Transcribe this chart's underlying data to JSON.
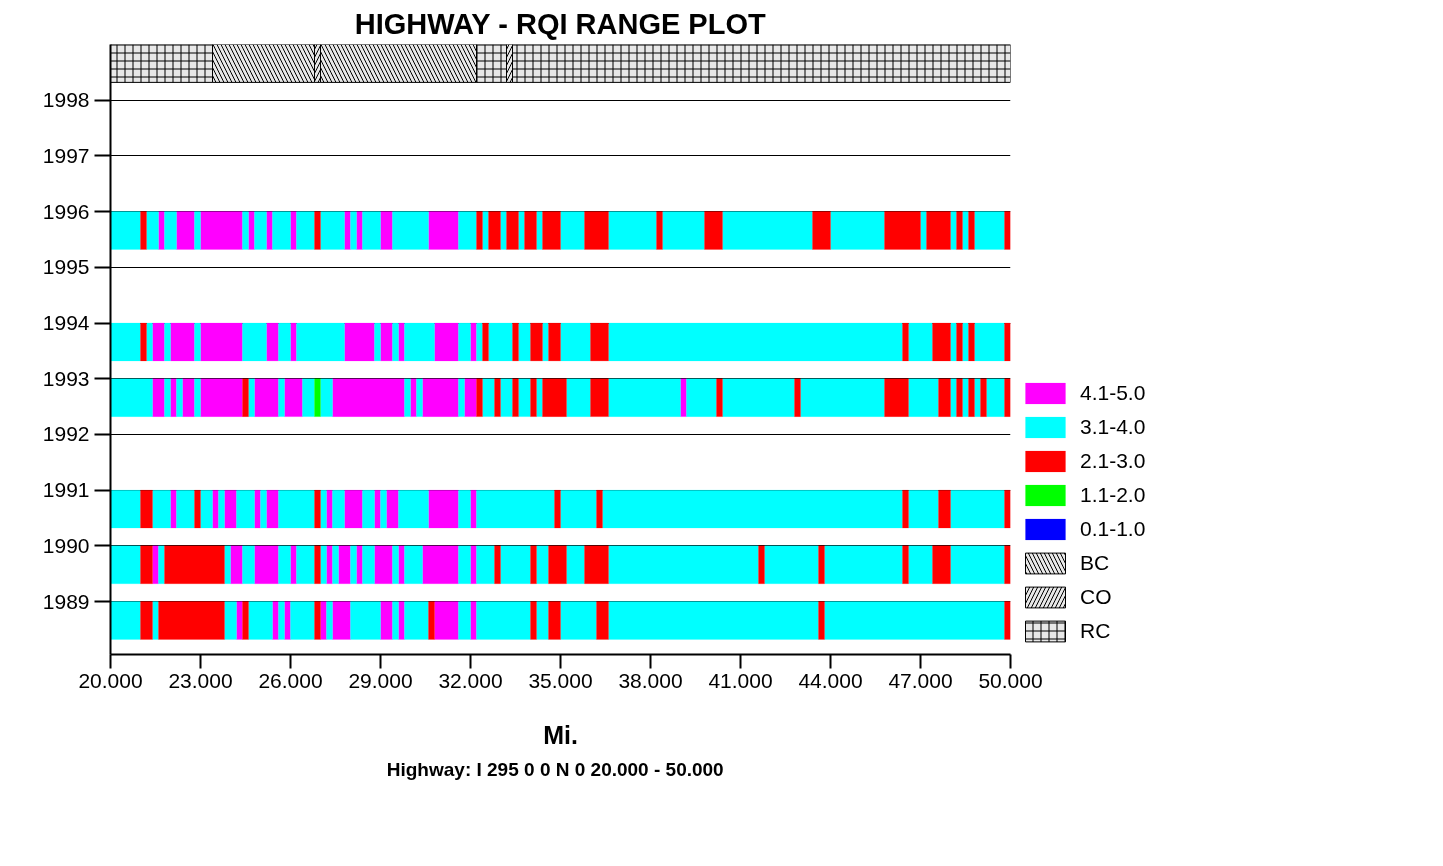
{
  "chart_data": {
    "type": "bar",
    "orientation": "horizontal",
    "title": "HIGHWAY - RQI RANGE PLOT",
    "xlabel": "Mi.",
    "annotations": [
      "Highway: I 295  0 0 N 0  20.000 - 50.000"
    ],
    "categories": [
      null,
      "1998",
      "1997",
      "1996",
      "1995",
      "1994",
      "1993",
      "1992",
      "1991",
      "1990",
      "1989"
    ],
    "xlim": [
      20,
      50
    ],
    "xticks": [
      {
        "value": 20,
        "label": "20.000"
      },
      {
        "value": 23,
        "label": "23.000"
      },
      {
        "value": 26,
        "label": "26.000"
      },
      {
        "value": 29,
        "label": "29.000"
      },
      {
        "value": 32,
        "label": "32.000"
      },
      {
        "value": 35,
        "label": "35.000"
      },
      {
        "value": 38,
        "label": "38.000"
      },
      {
        "value": 41,
        "label": "41.000"
      },
      {
        "value": 44,
        "label": "44.000"
      },
      {
        "value": 47,
        "label": "47.000"
      },
      {
        "value": 50,
        "label": "50.000"
      }
    ],
    "grid": "y",
    "legend": "right",
    "series": [
      {
        "name": "4.1-5.0",
        "color": "#ff00ff",
        "base": [
          null,
          null,
          null,
          21.6,
          null,
          21.4,
          21.4,
          null,
          22.0,
          21.4,
          24.2
        ],
        "values": [
          null,
          null,
          null,
          0.2,
          null,
          0.4,
          0.4,
          null,
          0.2,
          0.2,
          0.2
        ]
      },
      {
        "color": "#ff00ff",
        "base": [
          null,
          null,
          null,
          22.2,
          null,
          22.0,
          22.0,
          null,
          23.4,
          24.0,
          25.4
        ],
        "values": [
          null,
          null,
          null,
          0.6,
          null,
          0.8,
          0.2,
          null,
          0.2,
          0.4,
          0.2
        ]
      },
      {
        "color": "#ff00ff",
        "base": [
          null,
          null,
          null,
          23.0,
          null,
          23.0,
          22.4,
          null,
          23.8,
          24.8,
          25.8
        ],
        "values": [
          null,
          null,
          null,
          1.4,
          null,
          1.4,
          0.4,
          null,
          0.4,
          0.8,
          0.2
        ]
      },
      {
        "color": "#ff00ff",
        "base": [
          null,
          null,
          null,
          24.6,
          null,
          25.2,
          23.0,
          null,
          24.8,
          26.0,
          27.0
        ],
        "values": [
          null,
          null,
          null,
          0.2,
          null,
          0.4,
          1.4,
          null,
          0.2,
          0.2,
          0.2
        ]
      },
      {
        "color": "#ff00ff",
        "base": [
          null,
          null,
          null,
          25.2,
          null,
          26.0,
          24.8,
          null,
          25.2,
          27.2,
          27.4
        ],
        "values": [
          null,
          null,
          null,
          0.2,
          null,
          0.2,
          0.8,
          null,
          0.4,
          0.2,
          0.6
        ]
      },
      {
        "color": "#ff00ff",
        "base": [
          null,
          null,
          null,
          26.0,
          null,
          27.8,
          25.8,
          null,
          27.2,
          27.6,
          29.0
        ],
        "values": [
          null,
          null,
          null,
          0.2,
          null,
          1.0,
          0.6,
          null,
          0.2,
          0.4,
          0.4
        ]
      },
      {
        "color": "#ff00ff",
        "base": [
          null,
          null,
          null,
          27.8,
          null,
          29.0,
          27.4,
          null,
          27.8,
          28.2,
          29.6
        ],
        "values": [
          null,
          null,
          null,
          0.2,
          null,
          0.4,
          2.4,
          null,
          0.6,
          0.2,
          0.2
        ]
      },
      {
        "color": "#ff00ff",
        "base": [
          null,
          null,
          null,
          28.2,
          null,
          29.6,
          30.0,
          null,
          28.8,
          28.8,
          30.8
        ],
        "values": [
          null,
          null,
          null,
          0.2,
          null,
          0.2,
          0.2,
          null,
          0.2,
          0.6,
          0.8
        ]
      },
      {
        "color": "#ff00ff",
        "base": [
          null,
          null,
          null,
          29.0,
          null,
          30.8,
          30.4,
          null,
          29.2,
          29.6,
          32.0
        ],
        "values": [
          null,
          null,
          null,
          0.4,
          null,
          0.8,
          1.2,
          null,
          0.4,
          0.2,
          0.2
        ]
      },
      {
        "color": "#ff00ff",
        "base": [
          null,
          null,
          null,
          30.6,
          null,
          32.0,
          31.8,
          null,
          30.6,
          30.4,
          null
        ],
        "values": [
          null,
          null,
          null,
          1.0,
          null,
          0.2,
          0.4,
          null,
          1.0,
          1.2,
          null
        ]
      },
      {
        "color": "#ff00ff",
        "base": [
          null,
          null,
          null,
          null,
          null,
          null,
          39.0,
          null,
          32.0,
          32.0,
          null
        ],
        "values": [
          null,
          null,
          null,
          null,
          null,
          null,
          0.2,
          null,
          0.2,
          0.2,
          null
        ]
      },
      {
        "name": "3.1-4.0",
        "color": "#00ffff",
        "base": [
          null,
          null,
          null,
          20.0,
          null,
          20.0,
          20.0,
          null,
          20.0,
          20.0,
          20.0
        ],
        "values": [
          null,
          null,
          null,
          1.0,
          null,
          1.0,
          1.4,
          null,
          1.0,
          1.0,
          1.0
        ]
      },
      {
        "color": "#00ffff",
        "base": [
          null,
          null,
          null,
          21.2,
          null,
          21.2,
          21.8,
          null,
          21.4,
          21.6,
          21.4
        ],
        "values": [
          null,
          null,
          null,
          0.4,
          null,
          0.2,
          0.2,
          null,
          0.6,
          0.2,
          0.2
        ]
      },
      {
        "color": "#00ffff",
        "base": [
          null,
          null,
          null,
          21.8,
          null,
          21.8,
          22.2,
          null,
          22.2,
          23.8,
          23.8
        ],
        "values": [
          null,
          null,
          null,
          0.4,
          null,
          0.2,
          0.2,
          null,
          0.6,
          0.2,
          0.4
        ]
      },
      {
        "color": "#00ffff",
        "base": [
          null,
          null,
          null,
          22.8,
          null,
          22.8,
          22.8,
          null,
          23.0,
          24.4,
          24.6
        ],
        "values": [
          null,
          null,
          null,
          0.2,
          null,
          0.2,
          0.2,
          null,
          0.4,
          0.4,
          0.8
        ]
      },
      {
        "color": "#00ffff",
        "base": [
          null,
          null,
          null,
          24.4,
          null,
          24.4,
          24.6,
          null,
          23.6,
          25.6,
          25.6
        ],
        "values": [
          null,
          null,
          null,
          0.2,
          null,
          0.8,
          0.2,
          null,
          0.2,
          0.4,
          0.2
        ]
      },
      {
        "color": "#00ffff",
        "base": [
          null,
          null,
          null,
          24.8,
          null,
          25.6,
          25.6,
          null,
          24.2,
          26.2,
          26.0
        ],
        "values": [
          null,
          null,
          null,
          0.4,
          null,
          0.4,
          0.2,
          null,
          0.6,
          0.6,
          0.8
        ]
      },
      {
        "color": "#00ffff",
        "base": [
          null,
          null,
          null,
          25.4,
          null,
          26.2,
          26.4,
          null,
          25.0,
          27.0,
          27.2
        ],
        "values": [
          null,
          null,
          null,
          0.6,
          null,
          1.6,
          0.4,
          null,
          0.2,
          0.2,
          0.2
        ]
      },
      {
        "color": "#00ffff",
        "base": [
          null,
          null,
          null,
          26.2,
          null,
          28.8,
          27.0,
          null,
          25.6,
          27.4,
          28.0
        ],
        "values": [
          null,
          null,
          null,
          0.6,
          null,
          0.2,
          0.4,
          null,
          1.2,
          0.2,
          1.0
        ]
      },
      {
        "color": "#00ffff",
        "base": [
          null,
          null,
          null,
          27.0,
          null,
          29.4,
          29.8,
          null,
          27.0,
          28.0,
          29.4
        ],
        "values": [
          null,
          null,
          null,
          0.8,
          null,
          0.2,
          0.2,
          null,
          0.2,
          0.2,
          0.2
        ]
      },
      {
        "color": "#00ffff",
        "base": [
          null,
          null,
          null,
          28.0,
          null,
          29.8,
          30.2,
          null,
          27.4,
          28.4,
          29.8
        ],
        "values": [
          null,
          null,
          null,
          0.2,
          null,
          1.0,
          0.2,
          null,
          0.4,
          0.4,
          0.8
        ]
      },
      {
        "color": "#00ffff",
        "base": [
          null,
          null,
          null,
          28.4,
          null,
          31.6,
          31.6,
          null,
          28.4,
          29.4,
          31.6
        ],
        "values": [
          null,
          null,
          null,
          0.6,
          null,
          0.4,
          0.2,
          null,
          0.4,
          0.2,
          0.4
        ]
      },
      {
        "color": "#00ffff",
        "base": [
          null,
          null,
          null,
          29.4,
          null,
          32.2,
          32.4,
          null,
          29.0,
          29.8,
          32.2
        ],
        "values": [
          null,
          null,
          null,
          1.2,
          null,
          0.2,
          0.4,
          null,
          0.2,
          0.6,
          1.8
        ]
      },
      {
        "color": "#00ffff",
        "base": [
          null,
          null,
          null,
          31.6,
          null,
          32.6,
          33.0,
          null,
          29.6,
          31.6,
          34.2
        ],
        "values": [
          null,
          null,
          null,
          0.6,
          null,
          0.8,
          0.4,
          null,
          1.0,
          0.4,
          0.4
        ]
      },
      {
        "color": "#00ffff",
        "base": [
          null,
          null,
          null,
          32.4,
          null,
          33.6,
          33.6,
          null,
          31.6,
          32.2,
          35.0
        ],
        "values": [
          null,
          null,
          null,
          0.2,
          null,
          0.4,
          0.4,
          null,
          0.4,
          0.6,
          1.2
        ]
      },
      {
        "color": "#00ffff",
        "base": [
          null,
          null,
          null,
          33.0,
          null,
          34.4,
          34.2,
          null,
          32.2,
          33.0,
          36.6
        ],
        "values": [
          null,
          null,
          null,
          0.2,
          null,
          0.2,
          0.2,
          null,
          2.6,
          1.0,
          7.0
        ]
      },
      {
        "color": "#00ffff",
        "base": [
          null,
          null,
          null,
          33.6,
          null,
          35.0,
          35.2,
          null,
          35.0,
          34.2,
          43.8
        ],
        "values": [
          null,
          null,
          null,
          0.2,
          null,
          1.0,
          0.8,
          null,
          1.2,
          0.4,
          6.0
        ]
      },
      {
        "color": "#00ffff",
        "base": [
          null,
          null,
          null,
          34.2,
          null,
          36.6,
          36.6,
          null,
          36.4,
          35.2,
          null
        ],
        "values": [
          null,
          null,
          null,
          0.2,
          null,
          9.8,
          2.4,
          null,
          10.0,
          0.6,
          null
        ]
      },
      {
        "color": "#00ffff",
        "base": [
          null,
          null,
          null,
          35.0,
          null,
          46.6,
          39.2,
          null,
          46.6,
          36.6,
          null
        ],
        "values": [
          null,
          null,
          null,
          0.8,
          null,
          0.8,
          1.0,
          null,
          1.0,
          5.0,
          null
        ]
      },
      {
        "color": "#00ffff",
        "base": [
          null,
          null,
          null,
          36.6,
          null,
          48.0,
          40.4,
          null,
          48.0,
          41.8,
          null
        ],
        "values": [
          null,
          null,
          null,
          1.6,
          null,
          0.2,
          2.4,
          null,
          1.8,
          1.8,
          null
        ]
      },
      {
        "color": "#00ffff",
        "base": [
          null,
          null,
          null,
          38.4,
          null,
          48.4,
          43.0,
          null,
          null,
          43.8,
          null
        ],
        "values": [
          null,
          null,
          null,
          1.4,
          null,
          0.2,
          2.8,
          null,
          null,
          2.6,
          null
        ]
      },
      {
        "color": "#00ffff",
        "base": [
          null,
          null,
          null,
          40.4,
          null,
          48.8,
          46.6,
          null,
          null,
          46.6,
          null
        ],
        "values": [
          null,
          null,
          null,
          3.0,
          null,
          1.0,
          1.0,
          null,
          null,
          0.8,
          null
        ]
      },
      {
        "color": "#00ffff",
        "base": [
          null,
          null,
          null,
          44.0,
          null,
          null,
          48.0,
          null,
          null,
          48.0,
          null
        ],
        "values": [
          null,
          null,
          null,
          1.8,
          null,
          null,
          0.2,
          null,
          null,
          1.8,
          null
        ]
      },
      {
        "color": "#00ffff",
        "base": [
          null,
          null,
          null,
          47.0,
          null,
          null,
          48.4,
          null,
          null,
          null,
          null
        ],
        "values": [
          null,
          null,
          null,
          0.2,
          null,
          null,
          0.2,
          null,
          null,
          null,
          null
        ]
      },
      {
        "color": "#00ffff",
        "base": [
          null,
          null,
          null,
          48.0,
          null,
          null,
          48.8,
          null,
          null,
          null,
          null
        ],
        "values": [
          null,
          null,
          null,
          0.2,
          null,
          null,
          0.2,
          null,
          null,
          null,
          null
        ]
      },
      {
        "color": "#00ffff",
        "base": [
          null,
          null,
          null,
          48.4,
          null,
          null,
          49.2,
          null,
          null,
          null,
          null
        ],
        "values": [
          null,
          null,
          null,
          0.2,
          null,
          null,
          0.6,
          null,
          null,
          null,
          null
        ]
      },
      {
        "color": "#00ffff",
        "base": [
          null,
          null,
          null,
          48.8,
          null,
          null,
          null,
          null,
          null,
          null,
          null
        ],
        "values": [
          null,
          null,
          null,
          1.0,
          null,
          null,
          null,
          null,
          null,
          null,
          null
        ]
      },
      {
        "name": "2.1-3.0",
        "color": "#ff0000",
        "base": [
          null,
          null,
          null,
          21.0,
          null,
          21.0,
          24.4,
          null,
          21.0,
          21.0,
          21.0
        ],
        "values": [
          null,
          null,
          null,
          0.2,
          null,
          0.2,
          0.2,
          null,
          0.4,
          0.4,
          0.4
        ]
      },
      {
        "color": "#ff0000",
        "base": [
          null,
          null,
          null,
          26.8,
          null,
          32.4,
          32.2,
          null,
          22.8,
          21.8,
          21.6
        ],
        "values": [
          null,
          null,
          null,
          0.2,
          null,
          0.2,
          0.2,
          null,
          0.2,
          2.0,
          2.2
        ]
      },
      {
        "color": "#ff0000",
        "base": [
          null,
          null,
          null,
          32.2,
          null,
          33.4,
          32.8,
          null,
          26.8,
          26.8,
          24.4
        ],
        "values": [
          null,
          null,
          null,
          0.2,
          null,
          0.2,
          0.2,
          null,
          0.2,
          0.2,
          0.2
        ]
      },
      {
        "color": "#ff0000",
        "base": [
          null,
          null,
          null,
          32.6,
          null,
          34.0,
          33.4,
          null,
          34.8,
          32.8,
          26.8
        ],
        "values": [
          null,
          null,
          null,
          0.4,
          null,
          0.4,
          0.2,
          null,
          0.2,
          0.2,
          0.2
        ]
      },
      {
        "color": "#ff0000",
        "base": [
          null,
          null,
          null,
          33.2,
          null,
          34.6,
          34.0,
          null,
          36.2,
          34.0,
          30.6
        ],
        "values": [
          null,
          null,
          null,
          0.4,
          null,
          0.4,
          0.2,
          null,
          0.2,
          0.2,
          0.2
        ]
      },
      {
        "color": "#ff0000",
        "base": [
          null,
          null,
          null,
          33.8,
          null,
          36.0,
          34.4,
          null,
          46.4,
          34.6,
          34.0
        ],
        "values": [
          null,
          null,
          null,
          0.4,
          null,
          0.6,
          0.8,
          null,
          0.2,
          0.6,
          0.2
        ]
      },
      {
        "color": "#ff0000",
        "base": [
          null,
          null,
          null,
          34.4,
          null,
          46.4,
          36.0,
          null,
          47.6,
          35.8,
          34.6
        ],
        "values": [
          null,
          null,
          null,
          0.6,
          null,
          0.2,
          0.6,
          null,
          0.4,
          0.8,
          0.4
        ]
      },
      {
        "color": "#ff0000",
        "base": [
          null,
          null,
          null,
          35.8,
          null,
          47.4,
          40.2,
          null,
          49.8,
          41.6,
          36.2
        ],
        "values": [
          null,
          null,
          null,
          0.8,
          null,
          0.6,
          0.2,
          null,
          0.2,
          0.2,
          0.4
        ]
      },
      {
        "color": "#ff0000",
        "base": [
          null,
          null,
          null,
          38.2,
          null,
          48.2,
          42.8,
          null,
          null,
          43.6,
          43.6
        ],
        "values": [
          null,
          null,
          null,
          0.2,
          null,
          0.2,
          0.2,
          null,
          null,
          0.2,
          0.2
        ]
      },
      {
        "color": "#ff0000",
        "base": [
          null,
          null,
          null,
          39.8,
          null,
          48.6,
          45.8,
          null,
          null,
          46.4,
          49.8
        ],
        "values": [
          null,
          null,
          null,
          0.6,
          null,
          0.2,
          0.8,
          null,
          null,
          0.2,
          0.2
        ]
      },
      {
        "color": "#ff0000",
        "base": [
          null,
          null,
          null,
          43.4,
          null,
          49.8,
          47.6,
          null,
          null,
          47.4,
          null
        ],
        "values": [
          null,
          null,
          null,
          0.6,
          null,
          0.2,
          0.4,
          null,
          null,
          0.6,
          null
        ]
      },
      {
        "color": "#ff0000",
        "base": [
          null,
          null,
          null,
          45.8,
          null,
          null,
          48.2,
          null,
          null,
          49.8,
          null
        ],
        "values": [
          null,
          null,
          null,
          1.2,
          null,
          null,
          0.2,
          null,
          null,
          0.2,
          null
        ]
      },
      {
        "color": "#ff0000",
        "base": [
          null,
          null,
          null,
          47.2,
          null,
          null,
          48.6,
          null,
          null,
          null,
          null
        ],
        "values": [
          null,
          null,
          null,
          0.8,
          null,
          null,
          0.2,
          null,
          null,
          null,
          null
        ]
      },
      {
        "color": "#ff0000",
        "base": [
          null,
          null,
          null,
          48.2,
          null,
          null,
          49.0,
          null,
          null,
          null,
          null
        ],
        "values": [
          null,
          null,
          null,
          0.2,
          null,
          null,
          0.2,
          null,
          null,
          null,
          null
        ]
      },
      {
        "color": "#ff0000",
        "base": [
          null,
          null,
          null,
          48.6,
          null,
          null,
          49.8,
          null,
          null,
          null,
          null
        ],
        "values": [
          null,
          null,
          null,
          0.2,
          null,
          null,
          0.2,
          null,
          null,
          null,
          null
        ]
      },
      {
        "color": "#ff0000",
        "base": [
          null,
          null,
          null,
          49.8,
          null,
          null,
          null,
          null,
          null,
          null,
          null
        ],
        "values": [
          null,
          null,
          null,
          0.2,
          null,
          null,
          null,
          null,
          null,
          null,
          null
        ]
      },
      {
        "name": "1.1-2.0",
        "color": "#00ff00",
        "base": [
          null,
          null,
          null,
          null,
          null,
          null,
          26.8,
          null,
          null,
          null,
          null
        ],
        "values": [
          null,
          null,
          null,
          null,
          null,
          null,
          0.2,
          null,
          null,
          null,
          null
        ]
      },
      {
        "name": "0.1-1.0",
        "color": "#0000ff",
        "base": [
          null,
          null,
          null,
          null,
          null,
          null,
          null,
          null,
          null,
          null,
          null
        ],
        "values": [
          null,
          null,
          null,
          null,
          null,
          null,
          null,
          null,
          null,
          null,
          null
        ]
      },
      {
        "name": "BC",
        "color": "#e8e8e8",
        "base": [
          23.4,
          null,
          null,
          null,
          null,
          null,
          null,
          null,
          null,
          null,
          null
        ],
        "values": [
          3.4,
          null,
          null,
          null,
          null,
          null,
          null,
          null,
          null,
          null,
          null
        ]
      },
      {
        "color": "#e8e8e8",
        "base": [
          27.0,
          null,
          null,
          null,
          null,
          null,
          null,
          null,
          null,
          null,
          null
        ],
        "values": [
          5.2,
          null,
          null,
          null,
          null,
          null,
          null,
          null,
          null,
          null,
          null
        ]
      },
      {
        "name": "CO",
        "color": "#e8e8e8",
        "base": [
          26.8,
          null,
          null,
          null,
          null,
          null,
          null,
          null,
          null,
          null,
          null
        ],
        "values": [
          0.2,
          null,
          null,
          null,
          null,
          null,
          null,
          null,
          null,
          null,
          null
        ]
      },
      {
        "color": "#e8e8e8",
        "base": [
          33.2,
          null,
          null,
          null,
          null,
          null,
          null,
          null,
          null,
          null,
          null
        ],
        "values": [
          0.2,
          null,
          null,
          null,
          null,
          null,
          null,
          null,
          null,
          null,
          null
        ]
      },
      {
        "name": "RC",
        "color": "#e8e8e8",
        "base": [
          20.0,
          null,
          null,
          null,
          null,
          null,
          null,
          null,
          null,
          null,
          null
        ],
        "values": [
          3.4,
          null,
          null,
          null,
          null,
          null,
          null,
          null,
          null,
          null,
          null
        ]
      },
      {
        "color": "#e8e8e8",
        "base": [
          32.2,
          null,
          null,
          null,
          null,
          null,
          null,
          null,
          null,
          null,
          null
        ],
        "values": [
          1.0,
          null,
          null,
          null,
          null,
          null,
          null,
          null,
          null,
          null,
          null
        ]
      },
      {
        "color": "#e8e8e8",
        "base": [
          33.4,
          null,
          null,
          null,
          null,
          null,
          null,
          null,
          null,
          null,
          null
        ],
        "values": [
          16.6,
          null,
          null,
          null,
          null,
          null,
          null,
          null,
          null,
          null,
          null
        ]
      }
    ]
  }
}
